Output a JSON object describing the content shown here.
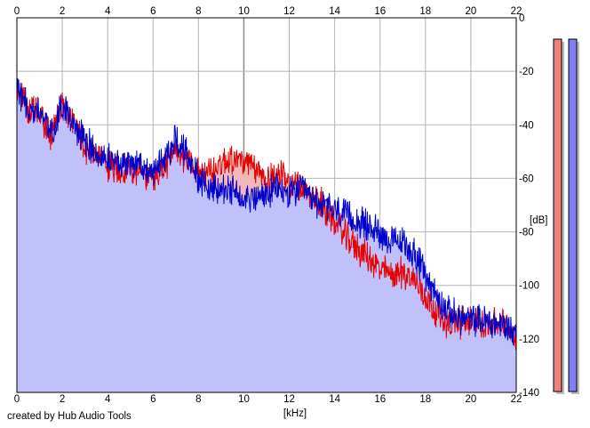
{
  "credit": "created by Hub Audio Tools",
  "colors": {
    "left": "#e60000",
    "right": "#0000cc",
    "fill_left": "#f0b8b8",
    "fill_right": "#c0c0fa",
    "grid": "#b4b4b4",
    "grid_major": "#8c8c8c"
  },
  "chart_data": {
    "type": "area",
    "xlabel": "[kHz]",
    "ylabel": "[dB]",
    "xlim": [
      0,
      22
    ],
    "ylim": [
      -140,
      0
    ],
    "x_ticks": [
      "0",
      "2",
      "4",
      "6",
      "8",
      "10",
      "12",
      "14",
      "16",
      "18",
      "20",
      "22"
    ],
    "y_ticks": [
      "0",
      "-20",
      "-40",
      "-60",
      "-80",
      "-100",
      "-120",
      "-140"
    ],
    "grid": true,
    "series": [
      {
        "color": "#e60000",
        "x": [
          0,
          0.5,
          1,
          1.5,
          2,
          2.5,
          3,
          3.5,
          4,
          4.5,
          5,
          5.5,
          6,
          6.5,
          7,
          7.5,
          8,
          8.5,
          9,
          9.5,
          10,
          10.5,
          11,
          11.5,
          12,
          12.5,
          13,
          13.5,
          14,
          14.5,
          15,
          15.5,
          16,
          16.5,
          17,
          17.5,
          18,
          18.5,
          19,
          19.5,
          20,
          20.5,
          21,
          21.5,
          22
        ],
        "values": [
          -26,
          -34,
          -36,
          -44,
          -33,
          -38,
          -48,
          -52,
          -55,
          -57,
          -56,
          -58,
          -60,
          -56,
          -50,
          -52,
          -58,
          -58,
          -54,
          -52,
          -54,
          -57,
          -60,
          -58,
          -62,
          -64,
          -66,
          -70,
          -76,
          -82,
          -86,
          -90,
          -94,
          -96,
          -95,
          -98,
          -104,
          -110,
          -114,
          -114,
          -113,
          -114,
          -114,
          -115,
          -119
        ]
      },
      {
        "color": "#0000cc",
        "x": [
          0,
          0.5,
          1,
          1.5,
          2,
          2.5,
          3,
          3.5,
          4,
          4.5,
          5,
          5.5,
          6,
          6.5,
          7,
          7.5,
          8,
          8.5,
          9,
          9.5,
          10,
          10.5,
          11,
          11.5,
          12,
          12.5,
          13,
          13.5,
          14,
          14.5,
          15,
          15.5,
          16,
          16.5,
          17,
          17.5,
          18,
          18.5,
          19,
          19.5,
          20,
          20.5,
          21,
          21.5,
          22
        ],
        "values": [
          -26,
          -34,
          -35,
          -43,
          -32,
          -40,
          -46,
          -50,
          -53,
          -55,
          -53,
          -56,
          -58,
          -52,
          -46,
          -50,
          -60,
          -64,
          -64,
          -65,
          -66,
          -68,
          -66,
          -64,
          -66,
          -64,
          -68,
          -70,
          -72,
          -74,
          -76,
          -78,
          -80,
          -84,
          -84,
          -88,
          -96,
          -104,
          -110,
          -112,
          -113,
          -113,
          -114,
          -115,
          -118
        ]
      }
    ],
    "level_meters": {
      "left_fill": 1.0,
      "right_fill": 1.0
    }
  }
}
